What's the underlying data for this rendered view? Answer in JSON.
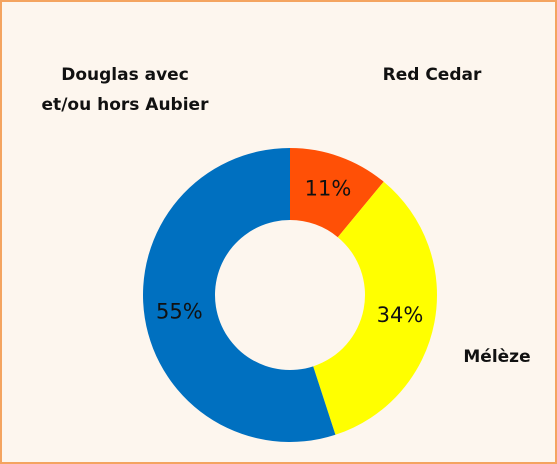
{
  "chart_data": {
    "type": "donut",
    "categories": [
      "Red Cedar",
      "Mélèze",
      "Douglas avec et/ou hors Aubier"
    ],
    "values": [
      11,
      34,
      55
    ],
    "value_labels": [
      "11%",
      "34%",
      "55%"
    ],
    "colors": [
      "#ff5006",
      "#ffff00",
      "#0070c0"
    ]
  }
}
